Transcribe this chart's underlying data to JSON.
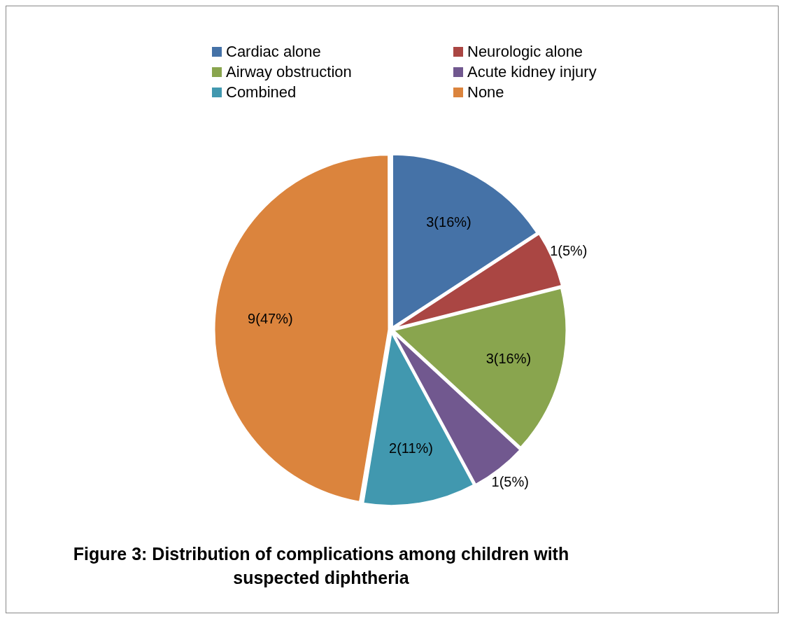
{
  "chart_data": {
    "type": "pie",
    "title": "Figure 3: Distribution of complications among children with suspected diphtheria",
    "categories": [
      "Cardiac alone",
      "Neurologic alone",
      "Airway obstruction",
      "Acute kidney injury",
      "Combined",
      "None"
    ],
    "values": [
      3,
      1,
      3,
      1,
      2,
      9
    ],
    "colors": [
      "#4572a7",
      "#aa4643",
      "#89a54e",
      "#71588f",
      "#4198af",
      "#db843d"
    ],
    "value_labels": [
      "3(16%)",
      "1(5%)",
      "3(16%)",
      "1(5%)",
      "2(11%)",
      "9(47%)"
    ],
    "legend": "top"
  }
}
